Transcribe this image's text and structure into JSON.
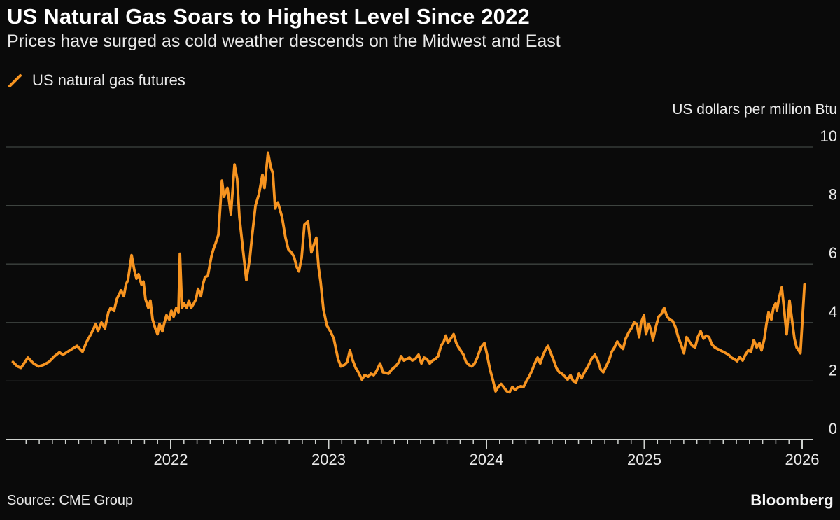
{
  "header": {
    "title": "US Natural Gas Soars to Highest Level Since 2022",
    "subtitle": "Prices have surged as cold weather descends on the Midwest and East"
  },
  "legend": {
    "series_label": "US natural gas futures"
  },
  "footer": {
    "source": "Source: CME Group",
    "brand": "Bloomberg"
  },
  "colors": {
    "background": "#0a0a0a",
    "line": "#f79420",
    "grid": "#3e4440",
    "axis": "#cfd2cf",
    "tick_text": "#e9e9e9"
  },
  "chart_data": {
    "type": "line",
    "title": "US Natural Gas Soars to Highest Level Since 2022",
    "subtitle": "Prices have surged as cold weather descends on the Midwest and East",
    "series_name": "US natural gas futures",
    "unit_label": "US dollars per million Btu",
    "xlabel": "",
    "ylabel": "US dollars per million Btu",
    "ylim": [
      0,
      10
    ],
    "y_ticks": [
      0,
      2,
      4,
      6,
      8,
      10
    ],
    "x_tick_years": [
      2022,
      2023,
      2024,
      2025,
      2026
    ],
    "x_range": [
      2021.0,
      2026.07
    ],
    "grid": true,
    "legend_position": "top-left",
    "points": [
      [
        2021.0,
        2.65
      ],
      [
        2021.029,
        2.5
      ],
      [
        2021.051,
        2.45
      ],
      [
        2021.095,
        2.8
      ],
      [
        2021.131,
        2.6
      ],
      [
        2021.162,
        2.5
      ],
      [
        2021.193,
        2.55
      ],
      [
        2021.228,
        2.65
      ],
      [
        2021.264,
        2.85
      ],
      [
        2021.295,
        2.98
      ],
      [
        2021.317,
        2.9
      ],
      [
        2021.361,
        3.05
      ],
      [
        2021.406,
        3.2
      ],
      [
        2021.441,
        3.0
      ],
      [
        2021.468,
        3.35
      ],
      [
        2021.494,
        3.6
      ],
      [
        2021.525,
        3.95
      ],
      [
        2021.539,
        3.7
      ],
      [
        2021.561,
        4.0
      ],
      [
        2021.583,
        3.8
      ],
      [
        2021.605,
        4.35
      ],
      [
        2021.619,
        4.5
      ],
      [
        2021.641,
        4.4
      ],
      [
        2021.658,
        4.8
      ],
      [
        2021.685,
        5.1
      ],
      [
        2021.703,
        4.9
      ],
      [
        2021.716,
        5.3
      ],
      [
        2021.729,
        5.45
      ],
      [
        2021.752,
        6.3
      ],
      [
        2021.769,
        5.8
      ],
      [
        2021.783,
        5.5
      ],
      [
        2021.796,
        5.65
      ],
      [
        2021.814,
        5.3
      ],
      [
        2021.827,
        5.4
      ],
      [
        2021.84,
        4.8
      ],
      [
        2021.858,
        4.5
      ],
      [
        2021.871,
        4.75
      ],
      [
        2021.885,
        4.1
      ],
      [
        2021.902,
        3.8
      ],
      [
        2021.916,
        3.6
      ],
      [
        2021.929,
        3.95
      ],
      [
        2021.947,
        3.7
      ],
      [
        2021.96,
        4.0
      ],
      [
        2021.973,
        4.25
      ],
      [
        2021.991,
        4.1
      ],
      [
        2022.004,
        4.4
      ],
      [
        2022.018,
        4.2
      ],
      [
        2022.035,
        4.5
      ],
      [
        2022.049,
        4.35
      ],
      [
        2022.058,
        6.35
      ],
      [
        2022.071,
        4.5
      ],
      [
        2022.084,
        4.65
      ],
      [
        2022.102,
        4.5
      ],
      [
        2022.115,
        4.75
      ],
      [
        2022.129,
        4.5
      ],
      [
        2022.146,
        4.65
      ],
      [
        2022.16,
        4.8
      ],
      [
        2022.173,
        5.15
      ],
      [
        2022.191,
        4.9
      ],
      [
        2022.204,
        5.3
      ],
      [
        2022.217,
        5.55
      ],
      [
        2022.235,
        5.6
      ],
      [
        2022.257,
        6.25
      ],
      [
        2022.27,
        6.5
      ],
      [
        2022.284,
        6.7
      ],
      [
        2022.302,
        7.0
      ],
      [
        2022.324,
        8.85
      ],
      [
        2022.337,
        8.3
      ],
      [
        2022.359,
        8.6
      ],
      [
        2022.381,
        7.7
      ],
      [
        2022.404,
        9.4
      ],
      [
        2022.421,
        8.9
      ],
      [
        2022.435,
        7.6
      ],
      [
        2022.457,
        6.5
      ],
      [
        2022.479,
        5.45
      ],
      [
        2022.501,
        6.2
      ],
      [
        2022.514,
        6.9
      ],
      [
        2022.537,
        8.0
      ],
      [
        2022.559,
        8.4
      ],
      [
        2022.581,
        9.05
      ],
      [
        2022.594,
        8.6
      ],
      [
        2022.616,
        9.8
      ],
      [
        2022.634,
        9.3
      ],
      [
        2022.647,
        9.1
      ],
      [
        2022.661,
        7.9
      ],
      [
        2022.679,
        8.1
      ],
      [
        2022.705,
        7.6
      ],
      [
        2022.727,
        6.9
      ],
      [
        2022.745,
        6.5
      ],
      [
        2022.763,
        6.4
      ],
      [
        2022.781,
        6.25
      ],
      [
        2022.798,
        5.9
      ],
      [
        2022.812,
        5.75
      ],
      [
        2022.829,
        6.2
      ],
      [
        2022.847,
        7.35
      ],
      [
        2022.869,
        7.45
      ],
      [
        2022.891,
        6.4
      ],
      [
        2022.909,
        6.7
      ],
      [
        2022.922,
        6.9
      ],
      [
        2022.936,
        5.9
      ],
      [
        2022.949,
        5.4
      ],
      [
        2022.967,
        4.45
      ],
      [
        2022.989,
        3.9
      ],
      [
        2023.011,
        3.7
      ],
      [
        2023.033,
        3.45
      ],
      [
        2023.06,
        2.75
      ],
      [
        2023.078,
        2.5
      ],
      [
        2023.1,
        2.55
      ],
      [
        2023.118,
        2.65
      ],
      [
        2023.135,
        3.05
      ],
      [
        2023.153,
        2.7
      ],
      [
        2023.171,
        2.45
      ],
      [
        2023.189,
        2.3
      ],
      [
        2023.211,
        2.05
      ],
      [
        2023.228,
        2.2
      ],
      [
        2023.251,
        2.15
      ],
      [
        2023.268,
        2.25
      ],
      [
        2023.286,
        2.2
      ],
      [
        2023.304,
        2.35
      ],
      [
        2023.326,
        2.6
      ],
      [
        2023.344,
        2.3
      ],
      [
        2023.361,
        2.28
      ],
      [
        2023.379,
        2.25
      ],
      [
        2023.401,
        2.4
      ],
      [
        2023.424,
        2.5
      ],
      [
        2023.446,
        2.65
      ],
      [
        2023.459,
        2.85
      ],
      [
        2023.477,
        2.7
      ],
      [
        2023.494,
        2.75
      ],
      [
        2023.512,
        2.8
      ],
      [
        2023.53,
        2.7
      ],
      [
        2023.548,
        2.75
      ],
      [
        2023.57,
        2.9
      ],
      [
        2023.588,
        2.6
      ],
      [
        2023.605,
        2.8
      ],
      [
        2023.623,
        2.75
      ],
      [
        2023.641,
        2.6
      ],
      [
        2023.659,
        2.7
      ],
      [
        2023.676,
        2.75
      ],
      [
        2023.694,
        2.85
      ],
      [
        2023.712,
        3.2
      ],
      [
        2023.73,
        3.35
      ],
      [
        2023.743,
        3.55
      ],
      [
        2023.756,
        3.3
      ],
      [
        2023.774,
        3.45
      ],
      [
        2023.792,
        3.6
      ],
      [
        2023.809,
        3.3
      ],
      [
        2023.823,
        3.15
      ],
      [
        2023.836,
        3.05
      ],
      [
        2023.854,
        2.9
      ],
      [
        2023.871,
        2.65
      ],
      [
        2023.889,
        2.55
      ],
      [
        2023.907,
        2.5
      ],
      [
        2023.925,
        2.6
      ],
      [
        2023.942,
        2.8
      ],
      [
        2023.965,
        3.15
      ],
      [
        2023.987,
        3.3
      ],
      [
        2024.004,
        2.9
      ],
      [
        2024.022,
        2.4
      ],
      [
        2024.04,
        2.05
      ],
      [
        2024.058,
        1.65
      ],
      [
        2024.075,
        1.8
      ],
      [
        2024.093,
        1.9
      ],
      [
        2024.111,
        1.78
      ],
      [
        2024.129,
        1.65
      ],
      [
        2024.146,
        1.62
      ],
      [
        2024.164,
        1.8
      ],
      [
        2024.182,
        1.7
      ],
      [
        2024.199,
        1.78
      ],
      [
        2024.217,
        1.82
      ],
      [
        2024.235,
        1.8
      ],
      [
        2024.253,
        2.0
      ],
      [
        2024.27,
        2.15
      ],
      [
        2024.288,
        2.35
      ],
      [
        2024.306,
        2.6
      ],
      [
        2024.324,
        2.8
      ],
      [
        2024.341,
        2.6
      ],
      [
        2024.359,
        2.9
      ],
      [
        2024.377,
        3.1
      ],
      [
        2024.39,
        3.2
      ],
      [
        2024.408,
        2.95
      ],
      [
        2024.426,
        2.7
      ],
      [
        2024.443,
        2.45
      ],
      [
        2024.461,
        2.3
      ],
      [
        2024.479,
        2.25
      ],
      [
        2024.497,
        2.15
      ],
      [
        2024.514,
        2.05
      ],
      [
        2024.532,
        2.2
      ],
      [
        2024.55,
        2.0
      ],
      [
        2024.568,
        1.95
      ],
      [
        2024.585,
        2.25
      ],
      [
        2024.603,
        2.1
      ],
      [
        2024.621,
        2.3
      ],
      [
        2024.643,
        2.5
      ],
      [
        2024.665,
        2.75
      ],
      [
        2024.687,
        2.9
      ],
      [
        2024.705,
        2.7
      ],
      [
        2024.723,
        2.4
      ],
      [
        2024.74,
        2.3
      ],
      [
        2024.758,
        2.5
      ],
      [
        2024.776,
        2.7
      ],
      [
        2024.794,
        3.0
      ],
      [
        2024.811,
        3.15
      ],
      [
        2024.829,
        3.35
      ],
      [
        2024.847,
        3.2
      ],
      [
        2024.865,
        3.1
      ],
      [
        2024.882,
        3.45
      ],
      [
        2024.9,
        3.65
      ],
      [
        2024.918,
        3.8
      ],
      [
        2024.936,
        4.0
      ],
      [
        2024.953,
        3.95
      ],
      [
        2024.967,
        3.5
      ],
      [
        2024.98,
        4.0
      ],
      [
        2024.998,
        4.25
      ],
      [
        2025.011,
        3.6
      ],
      [
        2025.029,
        3.95
      ],
      [
        2025.042,
        3.75
      ],
      [
        2025.055,
        3.4
      ],
      [
        2025.073,
        3.85
      ],
      [
        2025.091,
        4.2
      ],
      [
        2025.109,
        4.3
      ],
      [
        2025.126,
        4.5
      ],
      [
        2025.144,
        4.2
      ],
      [
        2025.162,
        4.1
      ],
      [
        2025.18,
        4.05
      ],
      [
        2025.197,
        3.85
      ],
      [
        2025.215,
        3.5
      ],
      [
        2025.233,
        3.25
      ],
      [
        2025.251,
        2.95
      ],
      [
        2025.268,
        3.5
      ],
      [
        2025.286,
        3.35
      ],
      [
        2025.304,
        3.2
      ],
      [
        2025.322,
        3.15
      ],
      [
        2025.339,
        3.5
      ],
      [
        2025.357,
        3.7
      ],
      [
        2025.375,
        3.45
      ],
      [
        2025.392,
        3.55
      ],
      [
        2025.41,
        3.5
      ],
      [
        2025.428,
        3.25
      ],
      [
        2025.446,
        3.15
      ],
      [
        2025.463,
        3.1
      ],
      [
        2025.481,
        3.05
      ],
      [
        2025.499,
        3.0
      ],
      [
        2025.517,
        2.95
      ],
      [
        2025.534,
        2.9
      ],
      [
        2025.552,
        2.8
      ],
      [
        2025.57,
        2.75
      ],
      [
        2025.588,
        2.68
      ],
      [
        2025.605,
        2.82
      ],
      [
        2025.623,
        2.7
      ],
      [
        2025.641,
        2.9
      ],
      [
        2025.659,
        3.05
      ],
      [
        2025.676,
        3.0
      ],
      [
        2025.694,
        3.4
      ],
      [
        2025.712,
        3.15
      ],
      [
        2025.73,
        3.3
      ],
      [
        2025.743,
        3.05
      ],
      [
        2025.761,
        3.45
      ],
      [
        2025.774,
        3.95
      ],
      [
        2025.787,
        4.35
      ],
      [
        2025.805,
        4.1
      ],
      [
        2025.818,
        4.5
      ],
      [
        2025.832,
        4.65
      ],
      [
        2025.84,
        4.4
      ],
      [
        2025.854,
        4.85
      ],
      [
        2025.871,
        5.2
      ],
      [
        2025.885,
        4.5
      ],
      [
        2025.894,
        4.0
      ],
      [
        2025.902,
        3.6
      ],
      [
        2025.92,
        4.75
      ],
      [
        2025.938,
        4.0
      ],
      [
        2025.951,
        3.45
      ],
      [
        2025.965,
        3.15
      ],
      [
        2025.978,
        3.05
      ],
      [
        2025.989,
        2.95
      ],
      [
        2026.015,
        5.3
      ]
    ]
  }
}
